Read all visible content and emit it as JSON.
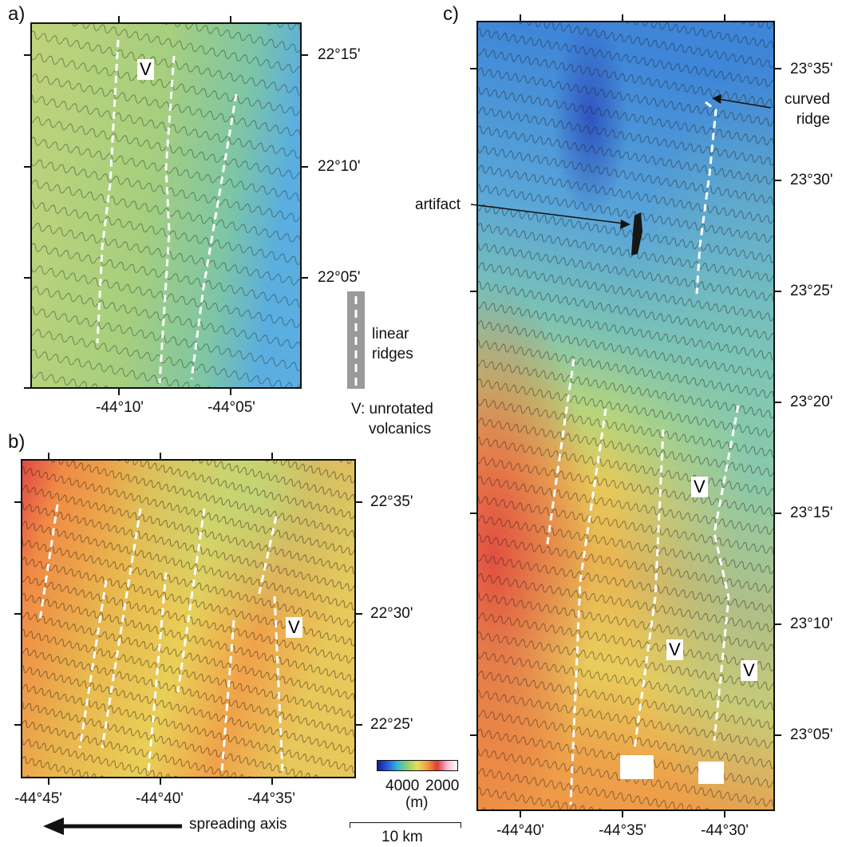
{
  "panels": {
    "a": {
      "label": "a)",
      "lat_labels": [
        "22°15'",
        "22°10'",
        "22°05'"
      ],
      "lon_labels": [
        "-44°10'",
        "-44°05'"
      ],
      "v_labels": [
        "V"
      ]
    },
    "b": {
      "label": "b)",
      "lat_labels": [
        "22°35'",
        "22°30'",
        "22°25'"
      ],
      "lon_labels": [
        "-44°45'",
        "-44°40'",
        "-44°35'"
      ],
      "v_labels": [
        "V"
      ]
    },
    "c": {
      "label": "c)",
      "lat_labels": [
        "23°35'",
        "23°30'",
        "23°25'",
        "23°20'",
        "23°15'",
        "23°10'",
        "23°05'"
      ],
      "lon_labels": [
        "-44°40'",
        "-44°35'",
        "-44°30'"
      ],
      "v_labels": [
        "V",
        "V",
        "V"
      ],
      "annotations": {
        "curved_ridge_line1": "curved",
        "curved_ridge_line2": "ridge",
        "artifact": "artifact"
      }
    }
  },
  "legend": {
    "ridges_line1": "linear",
    "ridges_line2": "ridges",
    "v_line1": "V: unrotated",
    "v_line2": "volcanics",
    "colorbar_tick_1": "4000",
    "colorbar_tick_2": "2000",
    "colorbar_unit": "(m)",
    "scalebar_label": "10 km",
    "spreading_label": "spreading axis"
  },
  "colors": {
    "deep": "#3a6fd6",
    "mid": "#9ccc78",
    "shallow_yellow": "#e9df6a",
    "shallow_orange": "#f0a24a",
    "shallowest": "#e04a45",
    "ridge_dash": "#ffffff",
    "frame": "#111111"
  }
}
